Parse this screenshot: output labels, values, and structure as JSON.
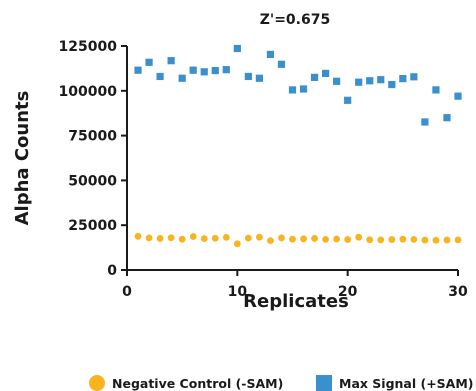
{
  "chart_data": {
    "type": "scatter",
    "title": "Z'=0.675",
    "xlabel": "Replicates",
    "ylabel": "Alpha Counts",
    "xlim": [
      0,
      30
    ],
    "ylim": [
      0,
      125000
    ],
    "x_ticks": [
      "0",
      "10",
      "20",
      "30"
    ],
    "y_ticks": [
      "0",
      "25000",
      "50000",
      "75000",
      "100000",
      "125000"
    ],
    "grid": false,
    "legend_position": "bottom",
    "x": [
      1,
      2,
      3,
      4,
      5,
      6,
      7,
      8,
      9,
      10,
      11,
      12,
      13,
      14,
      15,
      16,
      17,
      18,
      19,
      20,
      21,
      22,
      23,
      24,
      25,
      26,
      27,
      28,
      29,
      30
    ],
    "series": [
      {
        "name": "Negative Control (-SAM)",
        "color": "#f9b31c",
        "marker": "circle",
        "values": [
          18800,
          17900,
          17600,
          18000,
          17200,
          18700,
          17500,
          17700,
          18200,
          14600,
          17800,
          18300,
          16400,
          17900,
          17200,
          17400,
          17600,
          17100,
          17300,
          17000,
          18300,
          16900,
          16800,
          17000,
          17200,
          17100,
          16700,
          16600,
          16700,
          16800
        ]
      },
      {
        "name": "Max Signal (+SAM)",
        "color": "#3a8fcd",
        "marker": "square",
        "values": [
          111500,
          115900,
          108000,
          116800,
          107000,
          111500,
          110600,
          111300,
          111800,
          123600,
          108000,
          107000,
          120300,
          114800,
          100500,
          101000,
          107500,
          109700,
          105300,
          94700,
          104800,
          105600,
          106200,
          103500,
          106800,
          107800,
          82600,
          100500,
          85000,
          97000
        ]
      }
    ]
  }
}
